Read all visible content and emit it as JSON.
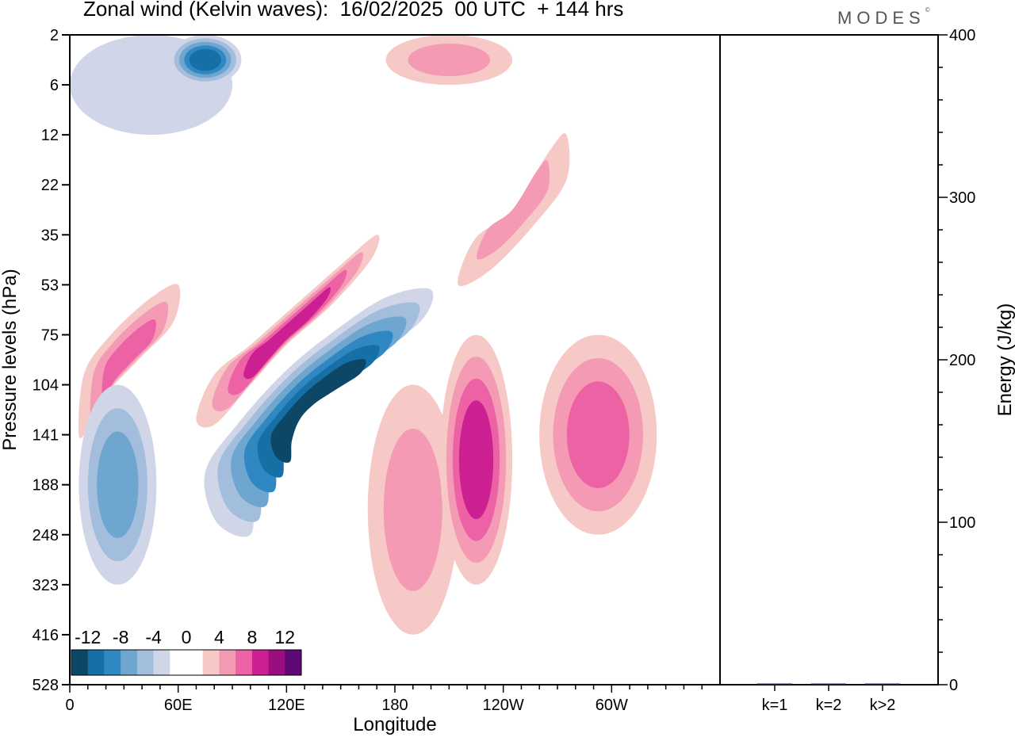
{
  "title": "Zonal wind (Kelvin waves):  16/02/2025  00 UTC  + 144 hrs",
  "brand": "MODES",
  "brand_mark": "©",
  "colors": {
    "neg": [
      "#0d4766",
      "#1670a6",
      "#2f88c2",
      "#6fa6d0",
      "#a3bedc",
      "#d0d6e8"
    ],
    "zero": "#ffffff",
    "pos": [
      "#f6c8c6",
      "#f59ab4",
      "#ec62a5",
      "#cc1f92",
      "#9a0f80",
      "#5d0a76"
    ]
  },
  "chart_data": [
    {
      "type": "heatmap",
      "xlabel": "Longitude",
      "ylabel": "Pressure levels (hPa)",
      "x_ticks": [
        "0",
        "60E",
        "120E",
        "180",
        "120W",
        "60W"
      ],
      "y_ticks": [
        "2",
        "6",
        "12",
        "22",
        "35",
        "53",
        "75",
        "104",
        "141",
        "188",
        "248",
        "323",
        "416",
        "528"
      ],
      "colorbar": {
        "labels": [
          "-12",
          "-8",
          "-4",
          "0",
          "4",
          "8",
          "12"
        ],
        "levels": [
          -14,
          -12,
          -10,
          -8,
          -6,
          -4,
          -2,
          2,
          4,
          6,
          8,
          10,
          12,
          14
        ]
      },
      "features": [
        {
          "name": "upper-left-negative",
          "lon": [
            0,
            90
          ],
          "lev": [
            2,
            12
          ],
          "value": -3
        },
        {
          "name": "upper-neg-120E",
          "lon": [
            55,
            95
          ],
          "lev": [
            2,
            6
          ],
          "value": -10
        },
        {
          "name": "upper-positive-140W",
          "lon": [
            175,
            245
          ],
          "lev": [
            2,
            6
          ],
          "value": 5
        },
        {
          "name": "tilted-negative-band",
          "lon": [
            75,
            200
          ],
          "lev": [
            53,
            248
          ],
          "value": -12
        },
        {
          "name": "tilted-positive-band",
          "lon": [
            70,
            170
          ],
          "lev": [
            35,
            141
          ],
          "value": 8
        },
        {
          "name": "left-positive-band",
          "lon": [
            5,
            60
          ],
          "lev": [
            53,
            141
          ],
          "value": 6
        },
        {
          "name": "lower-left-negative",
          "lon": [
            5,
            48
          ],
          "lev": [
            104,
            323
          ],
          "value": -6
        },
        {
          "name": "positive-170W",
          "lon": [
            165,
            215
          ],
          "lev": [
            104,
            416
          ],
          "value": 5
        },
        {
          "name": "positive-125W",
          "lon": [
            205,
            245
          ],
          "lev": [
            75,
            323
          ],
          "value": 8
        },
        {
          "name": "positive-50W",
          "lon": [
            260,
            325
          ],
          "lev": [
            75,
            248
          ],
          "value": 6
        },
        {
          "name": "positive-70W-35hPa",
          "lon": [
            215,
            275
          ],
          "lev": [
            12,
            53
          ],
          "value": 5
        }
      ]
    },
    {
      "type": "bar",
      "ylabel": "Energy (J/kg)",
      "categories": [
        "k=1",
        "k=2",
        "k>2"
      ],
      "values": [
        0.4,
        0.2,
        0.5
      ],
      "ylim": [
        0,
        400
      ],
      "y_ticks": [
        "0",
        "100",
        "200",
        "300",
        "400"
      ]
    }
  ]
}
